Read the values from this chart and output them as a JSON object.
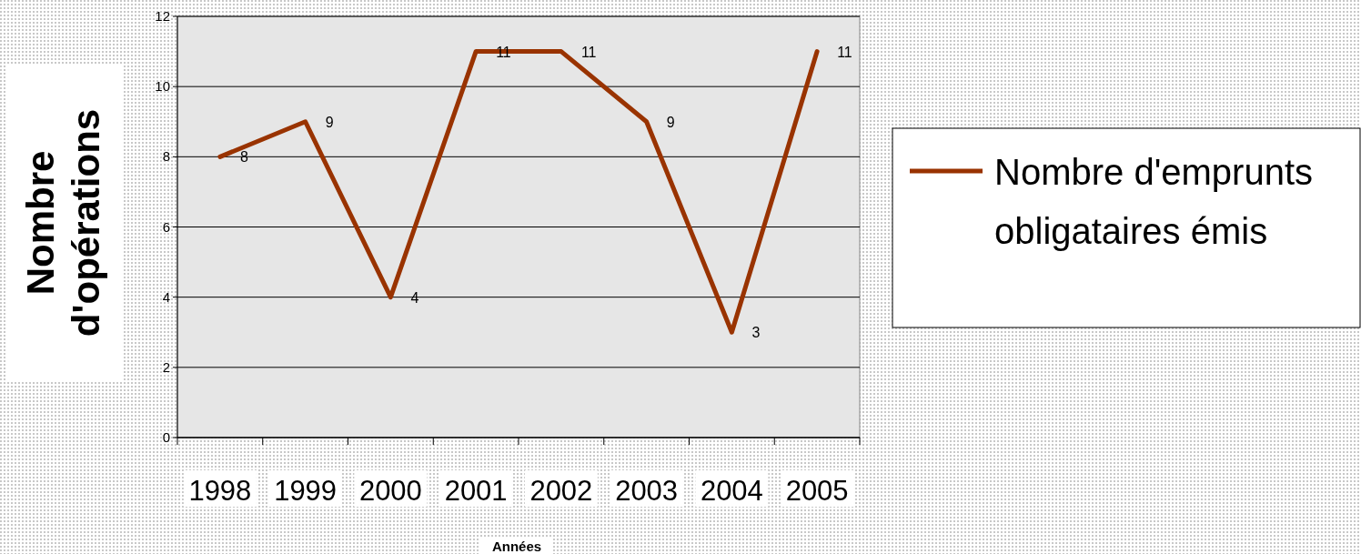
{
  "chart_data": {
    "type": "line",
    "xlabel": "Années",
    "ylabel": "Nombre d'opérations",
    "categories": [
      "1998",
      "1999",
      "2000",
      "2001",
      "2002",
      "2003",
      "2004",
      "2005"
    ],
    "series": [
      {
        "name": "Nombre d'emprunts obligataires émis",
        "color": "#993300",
        "values": [
          8,
          9,
          4,
          11,
          11,
          9,
          3,
          11
        ]
      }
    ],
    "ylim": [
      0,
      12
    ],
    "yticks": [
      0,
      2,
      4,
      6,
      8,
      10,
      12
    ],
    "grid": "y",
    "legend": "right",
    "data_labels": true,
    "marker": "none"
  }
}
